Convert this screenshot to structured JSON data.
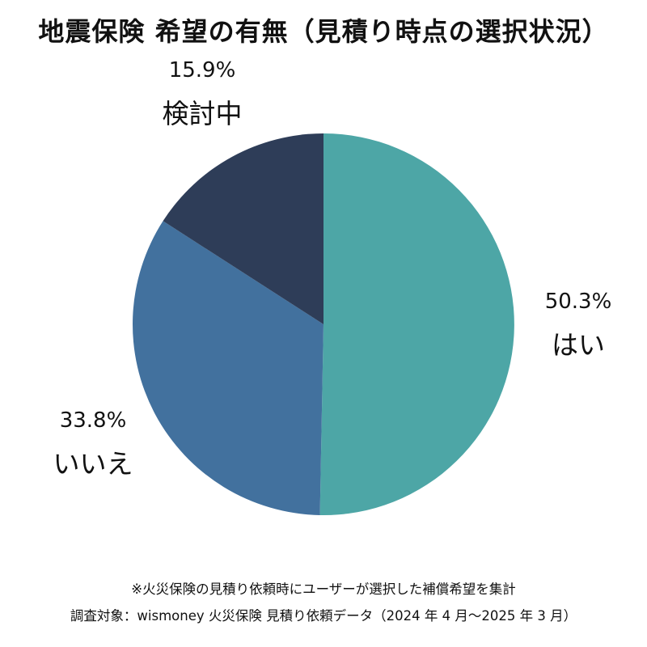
{
  "chart_data": {
    "type": "pie",
    "title": "地震保険 希望の有無（見積り時点の選択状況）",
    "slices": [
      {
        "label": "はい",
        "value": 50.3,
        "value_label": "50.3%",
        "color": "#4da6a6"
      },
      {
        "label": "いいえ",
        "value": 33.8,
        "value_label": "33.8%",
        "color": "#42719e"
      },
      {
        "label": "検討中",
        "value": 15.9,
        "value_label": "15.9%",
        "color": "#2e3d58"
      }
    ],
    "start_angle": "12 o'clock",
    "direction": "clockwise",
    "legend": "none"
  },
  "footnotes": {
    "line1": "※火災保険の見積り依頼時にユーザーが選択した補償希望を集計",
    "line2": "調査対象：wismoney 火災保険 見積り依頼データ（2024 年 4 月〜2025 年 3 月）"
  }
}
